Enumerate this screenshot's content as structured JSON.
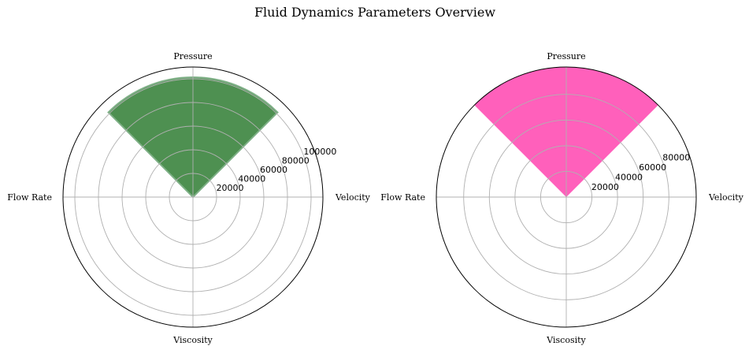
{
  "title": "Fluid Dynamics Parameters Overview",
  "chart_data": [
    {
      "type": "polar-bar",
      "categories": [
        "Velocity",
        "Pressure",
        "Flow Rate",
        "Viscosity"
      ],
      "values": [
        0,
        101325,
        0,
        0
      ],
      "rmax": 110000,
      "radial_ticks": [
        20000,
        40000,
        60000,
        80000,
        100000
      ],
      "radial_tick_labels": [
        "20000",
        "40000",
        "60000",
        "80000",
        "100000"
      ],
      "color": "#2f7d32",
      "grid": true
    },
    {
      "type": "polar-bar",
      "categories": [
        "Velocity",
        "Pressure",
        "Flow Rate",
        "Viscosity"
      ],
      "values": [
        0,
        101325,
        0,
        0
      ],
      "rmax": 101325,
      "radial_ticks": [
        20000,
        40000,
        60000,
        80000
      ],
      "radial_tick_labels": [
        "20000",
        "40000",
        "60000",
        "80000"
      ],
      "color": "#ff4fb4",
      "grid": true
    }
  ]
}
